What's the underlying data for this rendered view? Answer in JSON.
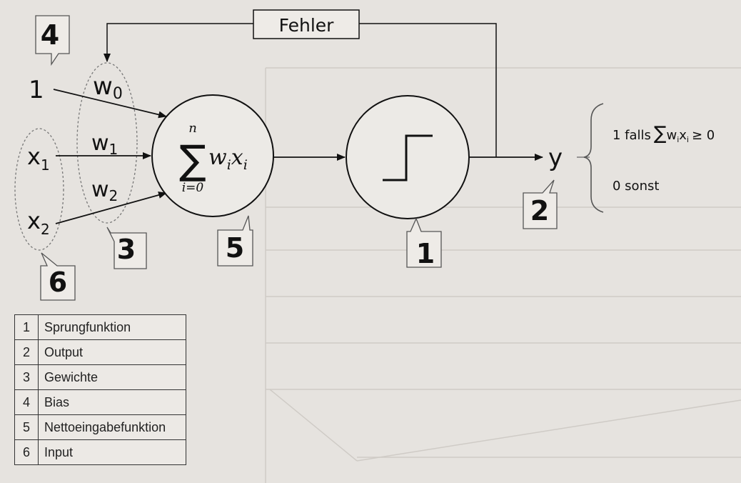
{
  "diagram": {
    "error_box_label": "Fehler",
    "bias_input": "1",
    "inputs": [
      {
        "base": "x",
        "sub": "1"
      },
      {
        "base": "x",
        "sub": "2"
      }
    ],
    "weights": [
      {
        "base": "w",
        "sub": "0"
      },
      {
        "base": "w",
        "sub": "1"
      },
      {
        "base": "w",
        "sub": "2"
      }
    ],
    "sum_formula": {
      "upper": "n",
      "lower": "i=0",
      "term": "w",
      "term_sub": "i",
      "var": "x",
      "var_sub": "i"
    },
    "output_symbol": "y",
    "cases": {
      "case1": {
        "prefix": "1 falls",
        "expr": "w",
        "expr_sub1": "i",
        "expr_mid": "x",
        "expr_sub2": "i",
        "cond": "≥ 0"
      },
      "case2": "0 sonst"
    },
    "callouts": {
      "bias": "4",
      "weights": "3",
      "net": "5",
      "step": "1",
      "output": "2",
      "input": "6"
    }
  },
  "legend": [
    {
      "num": "1",
      "label": "Sprungfunktion"
    },
    {
      "num": "2",
      "label": "Output"
    },
    {
      "num": "3",
      "label": "Gewichte"
    },
    {
      "num": "4",
      "label": "Bias"
    },
    {
      "num": "5",
      "label": "Nettoeingabefunktion"
    },
    {
      "num": "6",
      "label": "Input"
    }
  ]
}
